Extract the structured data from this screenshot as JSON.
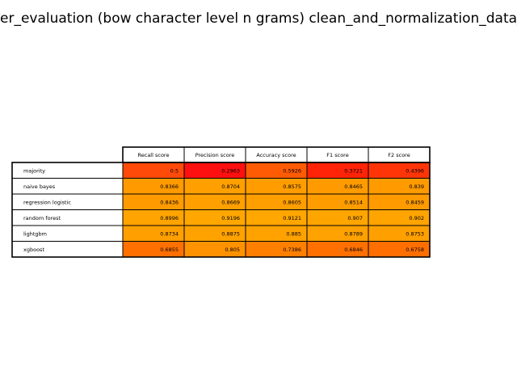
{
  "chart_data": {
    "type": "table",
    "title": "er_evaluation (bow character level n grams) clean_and_normalization_data_w",
    "columns": [
      "Recall score",
      "Precision score",
      "Accuracy score",
      "F1 score",
      "F2 score"
    ],
    "rows": [
      {
        "label": "majority",
        "values": [
          "0.5",
          "0.2963",
          "0.5926",
          "0.3721",
          "0.4396"
        ],
        "colors": [
          "#ff4a0a",
          "#ff1010",
          "#ff5b05",
          "#ff2308",
          "#ff3508"
        ]
      },
      {
        "label": "naive bayes",
        "values": [
          "0.8366",
          "0.8704",
          "0.8575",
          "0.8465",
          "0.839"
        ],
        "colors": [
          "#ff9a00",
          "#ffa000",
          "#ff9d00",
          "#ff9b00",
          "#ff9a00"
        ]
      },
      {
        "label": "regression logistic",
        "values": [
          "0.8436",
          "0.8669",
          "0.8605",
          "0.8514",
          "0.8459"
        ],
        "colors": [
          "#ff9b00",
          "#ff9f00",
          "#ff9e00",
          "#ff9c00",
          "#ff9b00"
        ]
      },
      {
        "label": "random forest",
        "values": [
          "0.8996",
          "0.9196",
          "0.9121",
          "0.907",
          "0.902"
        ],
        "colors": [
          "#ffa400",
          "#ffa700",
          "#ffa600",
          "#ffa500",
          "#ffa400"
        ]
      },
      {
        "label": "lightgbm",
        "values": [
          "0.8734",
          "0.8875",
          "0.885",
          "0.8789",
          "0.8753"
        ],
        "colors": [
          "#ffa000",
          "#ffa200",
          "#ffa200",
          "#ffa100",
          "#ffa000"
        ]
      },
      {
        "label": "xgboost",
        "values": [
          "0.6855",
          "0.805",
          "0.7386",
          "0.6846",
          "0.6758"
        ],
        "colors": [
          "#ff7000",
          "#ff9200",
          "#ff8000",
          "#ff7000",
          "#ff6e00"
        ]
      }
    ]
  }
}
